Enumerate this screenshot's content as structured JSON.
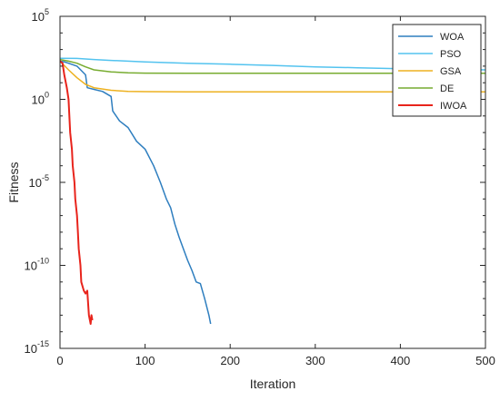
{
  "chart_data": {
    "type": "line",
    "title": "",
    "xlabel": "Iteration",
    "ylabel": "Fitness",
    "xlim": [
      0,
      500
    ],
    "ylim": [
      1e-15,
      100000
    ],
    "yscale": "log",
    "grid": false,
    "legend_position": "top-right",
    "x_ticks": [
      {
        "value": 0,
        "label": "0"
      },
      {
        "value": 100,
        "label": "100"
      },
      {
        "value": 200,
        "label": "200"
      },
      {
        "value": 300,
        "label": "300"
      },
      {
        "value": 400,
        "label": "400"
      },
      {
        "value": 500,
        "label": "500"
      }
    ],
    "y_ticks": [
      {
        "value": 1e-15,
        "base": "10",
        "exp": "-15"
      },
      {
        "value": 1e-10,
        "base": "10",
        "exp": "-10"
      },
      {
        "value": 1e-05,
        "base": "10",
        "exp": "-5"
      },
      {
        "value": 1,
        "base": "10",
        "exp": "0"
      },
      {
        "value": 100000,
        "base": "10",
        "exp": "5"
      }
    ],
    "series": [
      {
        "name": "WOA",
        "color": "#2e7ebf",
        "points": [
          [
            0,
            200
          ],
          [
            5,
            180
          ],
          [
            10,
            150
          ],
          [
            20,
            100
          ],
          [
            30,
            30
          ],
          [
            32,
            5
          ],
          [
            40,
            4
          ],
          [
            50,
            3
          ],
          [
            60,
            1.5
          ],
          [
            62,
            0.2
          ],
          [
            70,
            0.05
          ],
          [
            80,
            0.02
          ],
          [
            90,
            0.003
          ],
          [
            100,
            0.001
          ],
          [
            110,
            0.0001
          ],
          [
            118,
            1e-05
          ],
          [
            125,
            1e-06
          ],
          [
            130,
            3e-07
          ],
          [
            135,
            3e-08
          ],
          [
            140,
            5e-09
          ],
          [
            145,
            1e-09
          ],
          [
            150,
            2e-10
          ],
          [
            155,
            5e-11
          ],
          [
            160,
            1e-11
          ],
          [
            165,
            8e-12
          ],
          [
            170,
            1e-12
          ],
          [
            175,
            1e-13
          ],
          [
            177,
            3e-14
          ]
        ]
      },
      {
        "name": "PSO",
        "color": "#53c3ef",
        "points": [
          [
            0,
            300
          ],
          [
            20,
            290
          ],
          [
            40,
            250
          ],
          [
            60,
            220
          ],
          [
            100,
            180
          ],
          [
            150,
            150
          ],
          [
            200,
            130
          ],
          [
            250,
            110
          ],
          [
            300,
            90
          ],
          [
            350,
            80
          ],
          [
            400,
            70
          ],
          [
            450,
            65
          ],
          [
            500,
            60
          ]
        ]
      },
      {
        "name": "GSA",
        "color": "#edb120",
        "points": [
          [
            0,
            200
          ],
          [
            10,
            60
          ],
          [
            20,
            20
          ],
          [
            30,
            8
          ],
          [
            40,
            5
          ],
          [
            60,
            3.5
          ],
          [
            80,
            3
          ],
          [
            100,
            2.9
          ],
          [
            150,
            2.8
          ],
          [
            200,
            2.8
          ],
          [
            300,
            2.8
          ],
          [
            400,
            2.8
          ],
          [
            500,
            2.8
          ]
        ]
      },
      {
        "name": "DE",
        "color": "#77ac30",
        "points": [
          [
            0,
            250
          ],
          [
            10,
            200
          ],
          [
            20,
            150
          ],
          [
            30,
            90
          ],
          [
            40,
            60
          ],
          [
            60,
            45
          ],
          [
            80,
            40
          ],
          [
            100,
            38
          ],
          [
            150,
            37
          ],
          [
            200,
            37
          ],
          [
            300,
            37
          ],
          [
            400,
            37
          ],
          [
            500,
            37
          ]
        ]
      },
      {
        "name": "IWOA",
        "color": "#e8241c",
        "points": [
          [
            0,
            200
          ],
          [
            3,
            150
          ],
          [
            5,
            30
          ],
          [
            8,
            5
          ],
          [
            10,
            1
          ],
          [
            12,
            0.01
          ],
          [
            14,
            0.001
          ],
          [
            15,
            0.0001
          ],
          [
            17,
            1e-05
          ],
          [
            18,
            1e-06
          ],
          [
            20,
            1e-07
          ],
          [
            21,
            1e-08
          ],
          [
            22,
            1e-09
          ],
          [
            24,
            1e-10
          ],
          [
            25,
            1e-11
          ],
          [
            28,
            3e-12
          ],
          [
            30,
            2e-12
          ],
          [
            32,
            3e-12
          ],
          [
            34,
            1e-13
          ],
          [
            36,
            3e-14
          ],
          [
            37,
            1e-13
          ],
          [
            38,
            5e-14
          ]
        ]
      }
    ]
  }
}
